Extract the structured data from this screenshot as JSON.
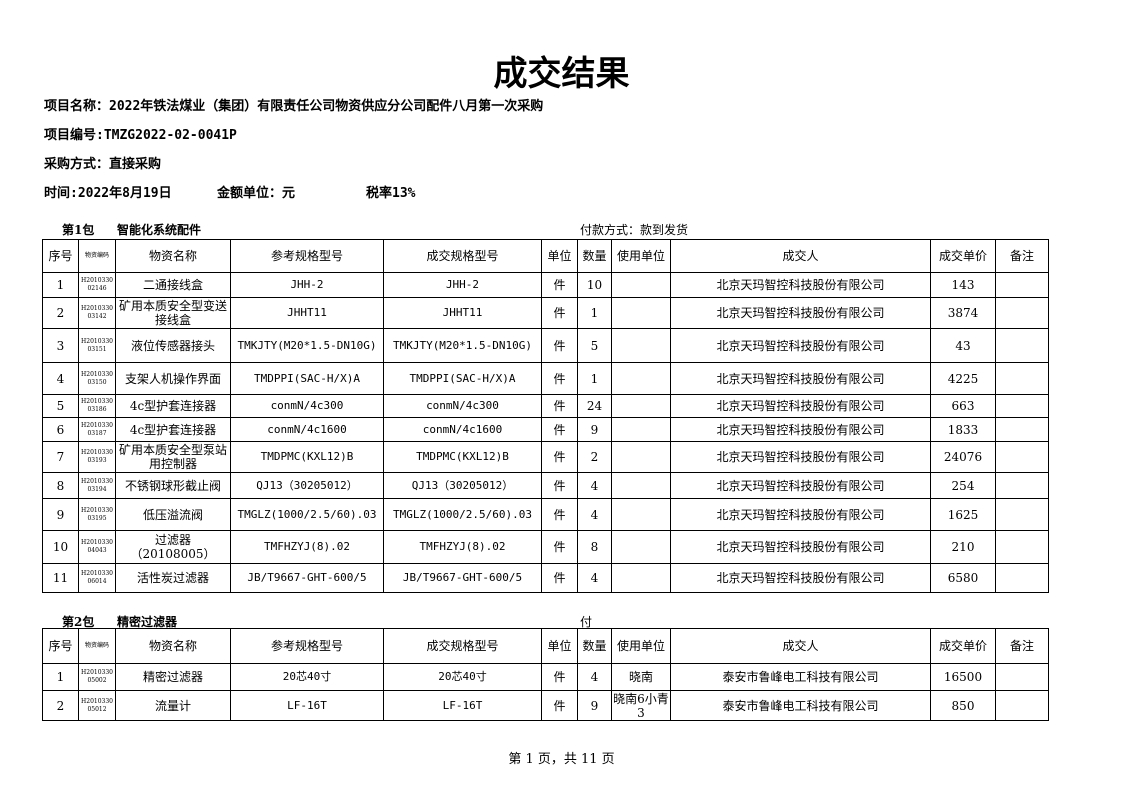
{
  "title": "成交结果",
  "info": {
    "project_name": "项目名称：2022年铁法煤业（集团）有限责任公司物资供应分公司配件八月第一次采购",
    "project_no": "项目编号:TMZG2022-02-0041P",
    "method": "采购方式：直接采购",
    "time": "时间:2022年8月19日",
    "currency_unit": "金额单位：元",
    "tax_rate": "税率13%"
  },
  "columns": [
    "序号",
    "物资编码",
    "物资名称",
    "参考规格型号",
    "成交规格型号",
    "单位",
    "数量",
    "使用单位",
    "成交人",
    "成交单价",
    "备注"
  ],
  "packages": [
    {
      "label": "第1包",
      "name": "智能化系统配件",
      "payment": "付款方式：款到发货",
      "rows": [
        {
          "no": 1,
          "code": [
            "H2010330",
            "02146"
          ],
          "name": "二通接线盒",
          "ref_spec": "JHH-2",
          "spec": "JHH-2",
          "unit": "件",
          "qty": 10,
          "supplier": "北京天玛智控科技股份有限公司",
          "price": 143
        },
        {
          "no": 2,
          "code": [
            "H2010330",
            "03142"
          ],
          "name": "矿用本质安全型变送接线盒",
          "ref_spec": "JHHT11",
          "spec": "JHHT11",
          "unit": "件",
          "qty": 1,
          "supplier": "北京天玛智控科技股份有限公司",
          "price": 3874
        },
        {
          "no": 3,
          "code": [
            "H2010330",
            "03151"
          ],
          "name": "液位传感器接头",
          "ref_spec": "TMKJTY(M20*1.5-DN10G)",
          "spec": "TMKJTY(M20*1.5-DN10G)",
          "unit": "件",
          "qty": 5,
          "supplier": "北京天玛智控科技股份有限公司",
          "price": 43
        },
        {
          "no": 4,
          "code": [
            "H2010330",
            "03150"
          ],
          "name": "支架人机操作界面",
          "ref_spec": "TMDPPI(SAC-H/X)A",
          "spec": "TMDPPI(SAC-H/X)A",
          "unit": "件",
          "qty": 1,
          "supplier": "北京天玛智控科技股份有限公司",
          "price": 4225
        },
        {
          "no": 5,
          "code": [
            "H2010330",
            "03186"
          ],
          "name": "4c型护套连接器",
          "ref_spec": "conmN/4c300",
          "spec": "conmN/4c300",
          "unit": "件",
          "qty": 24,
          "supplier": "北京天玛智控科技股份有限公司",
          "price": 663
        },
        {
          "no": 6,
          "code": [
            "H2010330",
            "03187"
          ],
          "name": "4c型护套连接器",
          "ref_spec": "conmN/4c1600",
          "spec": "conmN/4c1600",
          "unit": "件",
          "qty": 9,
          "supplier": "北京天玛智控科技股份有限公司",
          "price": 1833
        },
        {
          "no": 7,
          "code": [
            "H2010330",
            "03193"
          ],
          "name": "矿用本质安全型泵站用控制器",
          "ref_spec": "TMDPMC(KXL12)B",
          "spec": "TMDPMC(KXL12)B",
          "unit": "件",
          "qty": 2,
          "supplier": "北京天玛智控科技股份有限公司",
          "price": 24076
        },
        {
          "no": 8,
          "code": [
            "H2010330",
            "03194"
          ],
          "name": "不锈钢球形截止阀",
          "ref_spec": "QJ13（30205012）",
          "spec": "QJ13（30205012）",
          "unit": "件",
          "qty": 4,
          "supplier": "北京天玛智控科技股份有限公司",
          "price": 254
        },
        {
          "no": 9,
          "code": [
            "H2010330",
            "03195"
          ],
          "name": "低压溢流阀",
          "ref_spec": "TMGLZ(1000/2.5/60).03",
          "spec": "TMGLZ(1000/2.5/60).03",
          "unit": "件",
          "qty": 4,
          "supplier": "北京天玛智控科技股份有限公司",
          "price": 1625
        },
        {
          "no": 10,
          "code": [
            "H2010330",
            "04043"
          ],
          "name": "过滤器（20108005）",
          "ref_spec": "TMFHZYJ(8).02",
          "spec": "TMFHZYJ(8).02",
          "unit": "件",
          "qty": 8,
          "supplier": "北京天玛智控科技股份有限公司",
          "price": 210
        },
        {
          "no": 11,
          "code": [
            "H2010330",
            "06014"
          ],
          "name": "活性炭过滤器",
          "ref_spec": "JB/T9667-GHT-600/5",
          "spec": "JB/T9667-GHT-600/5",
          "unit": "件",
          "qty": 4,
          "supplier": "北京天玛智控科技股份有限公司",
          "price": 6580
        }
      ]
    },
    {
      "label": "第2包",
      "name": "精密过滤器",
      "payment": "付",
      "rows": [
        {
          "no": 1,
          "code": [
            "H2010330",
            "05002"
          ],
          "name": "精密过滤器",
          "ref_spec": "20芯40寸",
          "spec": "20芯40寸",
          "unit": "件",
          "qty": 4,
          "user": "晓南",
          "supplier": "泰安市鲁峰电工科技有限公司",
          "price": 16500
        },
        {
          "no": 2,
          "code": [
            "H2010330",
            "05012"
          ],
          "name": "流量计",
          "ref_spec": "LF-16T",
          "spec": "LF-16T",
          "unit": "件",
          "qty": 9,
          "user": "晓南6小青3",
          "supplier": "泰安市鲁峰电工科技有限公司",
          "price": 850
        }
      ]
    }
  ],
  "footer": "第 1 页，共 11 页"
}
